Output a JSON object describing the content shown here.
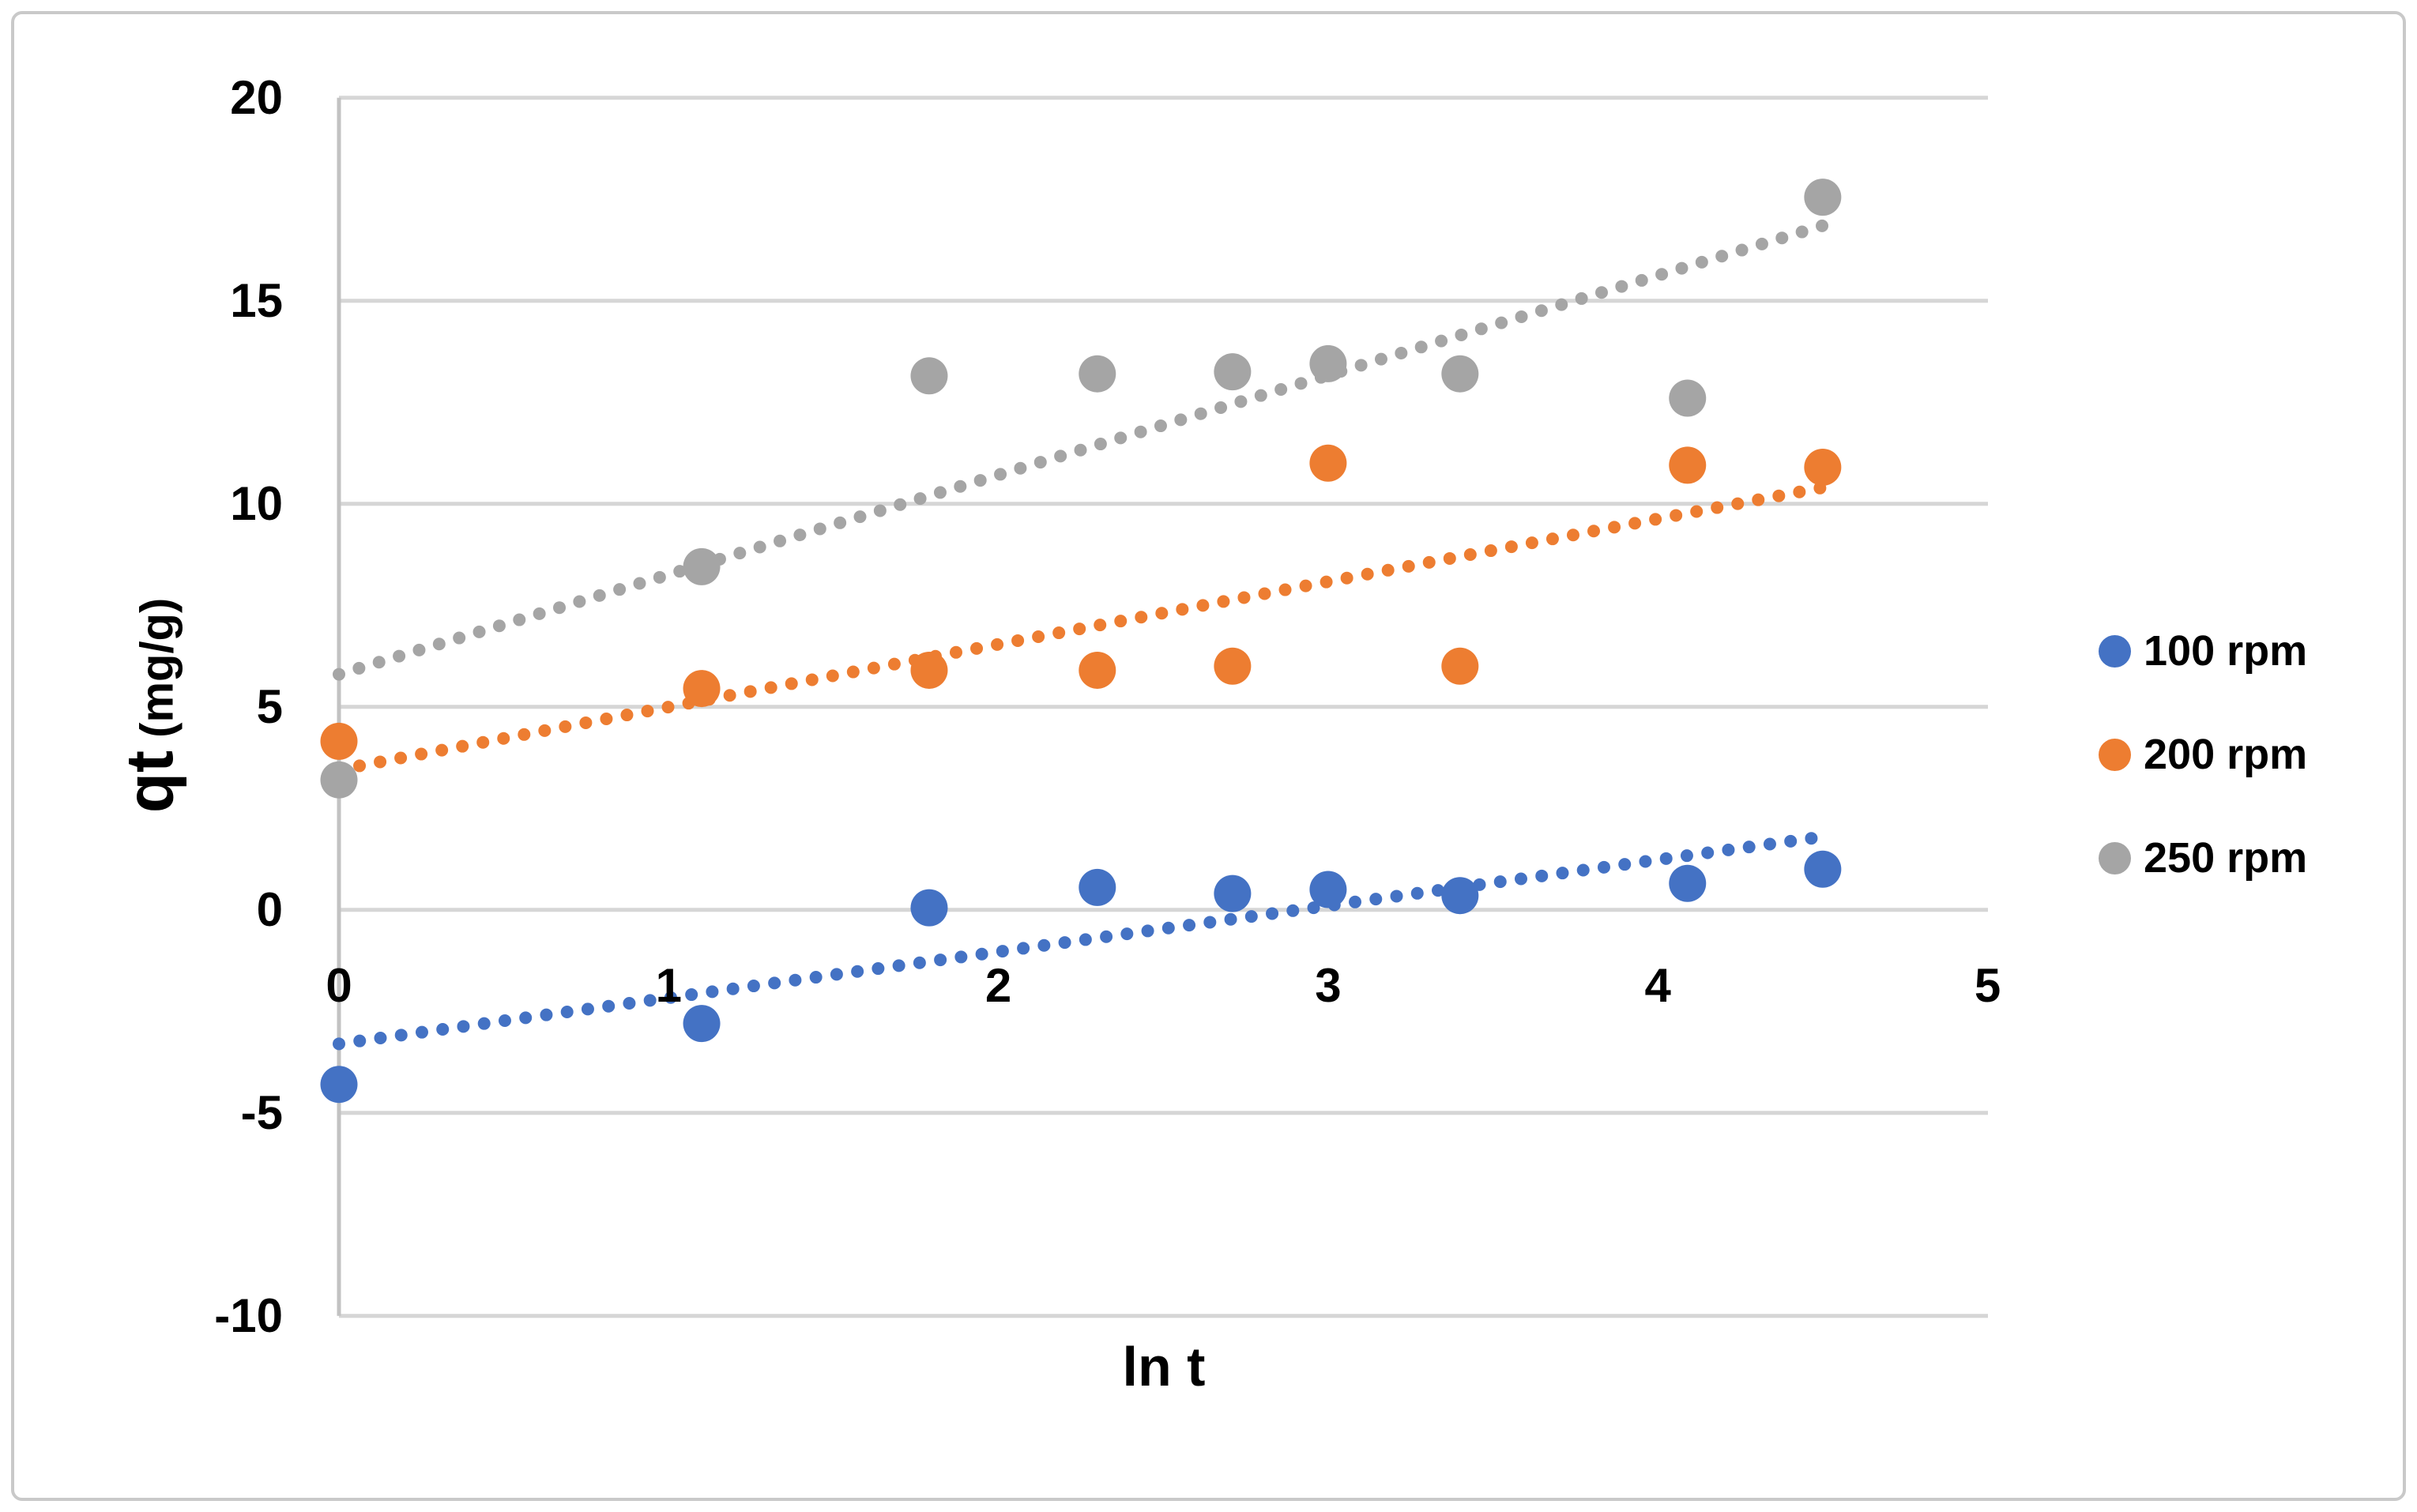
{
  "chart_data": {
    "type": "scatter",
    "xlabel": "ln t",
    "ylabel_main": "qt",
    "ylabel_unit": "(mg/g)",
    "xlim": [
      0,
      5
    ],
    "ylim": [
      -10,
      20
    ],
    "xticks": [
      0,
      1,
      2,
      3,
      4,
      5
    ],
    "yticks": [
      -10,
      -5,
      0,
      5,
      10,
      15,
      20
    ],
    "grid_on": true,
    "grid_color": "#d6d6d6",
    "axis_line_color": "#c2c2c2",
    "legend_position": "right",
    "x": [
      0,
      1.1,
      1.79,
      2.3,
      2.71,
      3.0,
      3.4,
      4.09,
      4.5
    ],
    "series": [
      {
        "name": "100 rpm",
        "color": "#4472C4",
        "values": [
          -4.3,
          -2.8,
          0.05,
          0.55,
          0.4,
          0.5,
          0.35,
          0.65,
          1.0
        ],
        "trend": {
          "x1": 0,
          "y1": -3.3,
          "x2": 4.5,
          "y2": 1.8
        }
      },
      {
        "name": "200 rpm",
        "color": "#ED7D31",
        "values": [
          4.15,
          5.45,
          5.9,
          5.9,
          6.0,
          11.0,
          6.0,
          10.95,
          10.9
        ],
        "trend": {
          "x1": 0,
          "y1": 3.45,
          "x2": 4.5,
          "y2": 10.4
        }
      },
      {
        "name": "250 rpm",
        "color": "#A5A5A5",
        "values": [
          3.2,
          8.45,
          13.15,
          13.2,
          13.25,
          13.45,
          13.2,
          12.6,
          17.55
        ],
        "trend": {
          "x1": 0,
          "y1": 5.8,
          "x2": 4.5,
          "y2": 16.85
        }
      }
    ]
  }
}
